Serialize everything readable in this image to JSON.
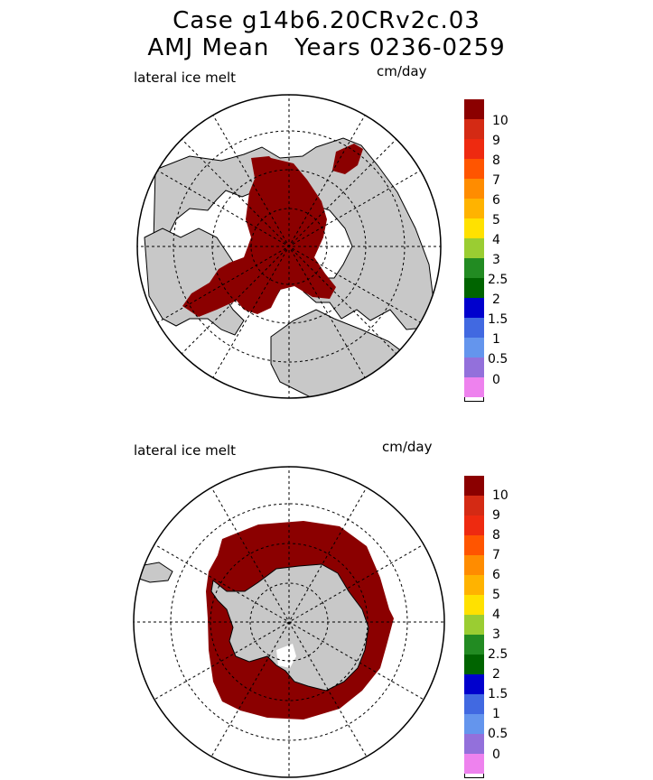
{
  "title": {
    "line1": "Case g14b6.20CRv2c.03",
    "line2": "AMJ Mean   Years 0236-0259"
  },
  "panels": [
    {
      "label": "lateral ice melt",
      "units": "cm/day",
      "hemisphere": "north",
      "legend": [
        "10",
        "9",
        "8",
        "7",
        "6",
        "5",
        "4",
        "3",
        "2.5",
        "2",
        "1.5",
        "1",
        "0.5",
        "0"
      ]
    },
    {
      "label": "lateral ice melt",
      "units": "cm/day",
      "hemisphere": "south",
      "legend": [
        "10",
        "9",
        "8",
        "7",
        "6",
        "5",
        "4",
        "3",
        "2.5",
        "2",
        "1.5",
        "1",
        "0.5",
        "0"
      ]
    }
  ],
  "colors": {
    "scale": [
      "#8b0000",
      "#d42a14",
      "#ee2a10",
      "#ff5500",
      "#ff8c00",
      "#ffb300",
      "#ffe100",
      "#9acd32",
      "#228b22",
      "#006400",
      "#0000cd",
      "#4169e1",
      "#6495ed",
      "#9370db",
      "#ee82ee"
    ],
    "land": "#c8c8c8",
    "ice_melt": "#8b0000"
  }
}
